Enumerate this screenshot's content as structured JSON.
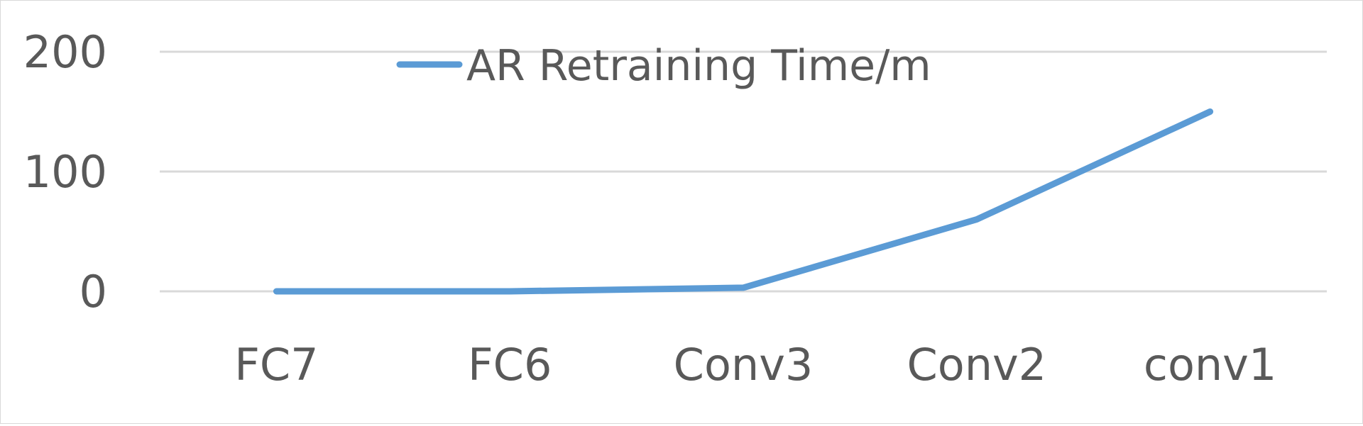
{
  "chart_data": {
    "type": "line",
    "categories": [
      "FC7",
      "FC6",
      "Conv3",
      "Conv2",
      "conv1"
    ],
    "series": [
      {
        "name": "AR Retraining Time/m",
        "values": [
          0,
          0,
          3,
          60,
          150
        ],
        "color": "#5b9bd5"
      }
    ],
    "yticks": [
      "0",
      "100",
      "200"
    ],
    "ylim": [
      0,
      200
    ],
    "grid": true,
    "legend_position": "top",
    "title": "",
    "xlabel": "",
    "ylabel": ""
  },
  "colors": {
    "grid": "#d9d9d9",
    "text": "#595959",
    "border": "#d9d9d9"
  }
}
